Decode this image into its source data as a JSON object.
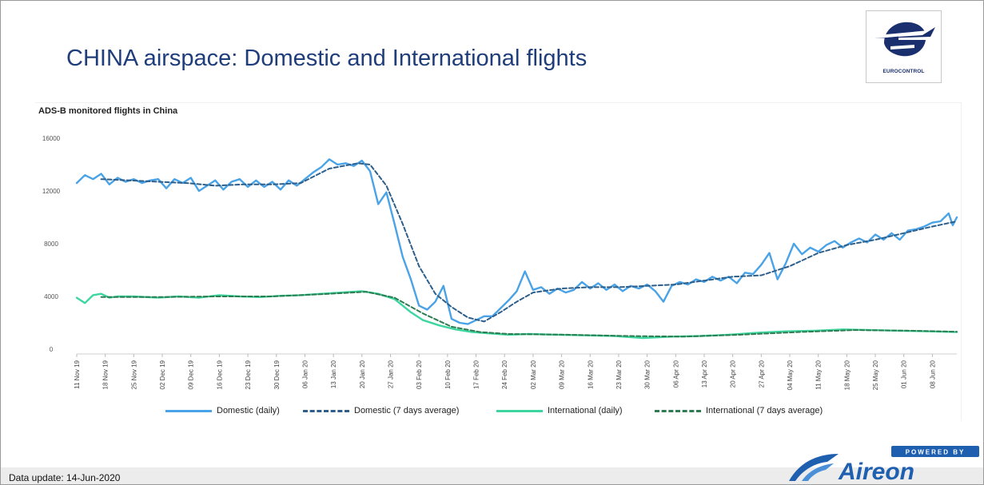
{
  "header": {
    "title": "CHINA airspace: Domestic and International flights",
    "logo_text": "EUROCONTROL"
  },
  "footer": {
    "update_text": "Data update: 14-Jun-2020",
    "brand_powered": "POWERED BY",
    "brand_name": "Aireon"
  },
  "colors": {
    "domestic_daily": "#4aa3e6",
    "domestic_avg": "#2d5f8a",
    "international_daily": "#3ed6a0",
    "international_avg": "#2e7d52",
    "title": "#1f3d7a",
    "brand": "#1f5fb0"
  },
  "chart_data": {
    "type": "line",
    "title": "ADS-B monitored flights in China",
    "xlabel": "",
    "ylabel": "",
    "ylim": [
      0,
      16000
    ],
    "yticks": [
      0,
      4000,
      8000,
      12000,
      16000
    ],
    "x_range": [
      "2019-11-11",
      "2020-06-14"
    ],
    "xtick_labels": [
      "11 Nov 19",
      "18 Nov 19",
      "25 Nov 19",
      "02 Dec 19",
      "09 Dec 19",
      "16 Dec 19",
      "23 Dec 19",
      "30 Dec 19",
      "06 Jan 20",
      "13 Jan 20",
      "20 Jan 20",
      "27 Jan 20",
      "03 Feb 20",
      "10 Feb 20",
      "17 Feb 20",
      "24 Feb 20",
      "02 Mar 20",
      "09 Mar 20",
      "16 Mar 20",
      "23 Mar 20",
      "30 Mar 20",
      "06 Apr 20",
      "13 Apr 20",
      "20 Apr 20",
      "27 Apr 20",
      "04 May 20",
      "11 May 20",
      "18 May 20",
      "25 May 20",
      "01 Jun 20",
      "08 Jun 20"
    ],
    "grid": false,
    "legend_position": "bottom",
    "series": [
      {
        "name": "Domestic (daily)",
        "style": "solid",
        "points": [
          [
            "2019-11-11",
            12600
          ],
          [
            "2019-11-13",
            13200
          ],
          [
            "2019-11-15",
            12900
          ],
          [
            "2019-11-17",
            13300
          ],
          [
            "2019-11-19",
            12500
          ],
          [
            "2019-11-21",
            13000
          ],
          [
            "2019-11-23",
            12700
          ],
          [
            "2019-11-25",
            12900
          ],
          [
            "2019-11-27",
            12600
          ],
          [
            "2019-11-29",
            12800
          ],
          [
            "2019-12-01",
            12900
          ],
          [
            "2019-12-03",
            12200
          ],
          [
            "2019-12-05",
            12900
          ],
          [
            "2019-12-07",
            12600
          ],
          [
            "2019-12-09",
            13000
          ],
          [
            "2019-12-11",
            12000
          ],
          [
            "2019-12-13",
            12400
          ],
          [
            "2019-12-15",
            12800
          ],
          [
            "2019-12-17",
            12100
          ],
          [
            "2019-12-19",
            12700
          ],
          [
            "2019-12-21",
            12900
          ],
          [
            "2019-12-23",
            12300
          ],
          [
            "2019-12-25",
            12800
          ],
          [
            "2019-12-27",
            12300
          ],
          [
            "2019-12-29",
            12700
          ],
          [
            "2019-12-31",
            12100
          ],
          [
            "2020-01-02",
            12800
          ],
          [
            "2020-01-04",
            12400
          ],
          [
            "2020-01-06",
            12900
          ],
          [
            "2020-01-08",
            13400
          ],
          [
            "2020-01-10",
            13800
          ],
          [
            "2020-01-12",
            14400
          ],
          [
            "2020-01-14",
            14000
          ],
          [
            "2020-01-16",
            14100
          ],
          [
            "2020-01-18",
            13900
          ],
          [
            "2020-01-20",
            14300
          ],
          [
            "2020-01-22",
            13500
          ],
          [
            "2020-01-24",
            11000
          ],
          [
            "2020-01-26",
            11900
          ],
          [
            "2020-01-28",
            9500
          ],
          [
            "2020-01-30",
            7000
          ],
          [
            "2020-02-01",
            5300
          ],
          [
            "2020-02-03",
            3300
          ],
          [
            "2020-02-05",
            3000
          ],
          [
            "2020-02-07",
            3600
          ],
          [
            "2020-02-09",
            4800
          ],
          [
            "2020-02-11",
            2300
          ],
          [
            "2020-02-13",
            2000
          ],
          [
            "2020-02-15",
            1900
          ],
          [
            "2020-02-17",
            2200
          ],
          [
            "2020-02-19",
            2500
          ],
          [
            "2020-02-21",
            2500
          ],
          [
            "2020-02-23",
            3100
          ],
          [
            "2020-02-25",
            3700
          ],
          [
            "2020-02-27",
            4400
          ],
          [
            "2020-02-29",
            5900
          ],
          [
            "2020-03-02",
            4500
          ],
          [
            "2020-03-04",
            4700
          ],
          [
            "2020-03-06",
            4200
          ],
          [
            "2020-03-08",
            4600
          ],
          [
            "2020-03-10",
            4300
          ],
          [
            "2020-03-12",
            4500
          ],
          [
            "2020-03-14",
            5100
          ],
          [
            "2020-03-16",
            4600
          ],
          [
            "2020-03-18",
            5000
          ],
          [
            "2020-03-20",
            4500
          ],
          [
            "2020-03-22",
            4900
          ],
          [
            "2020-03-24",
            4400
          ],
          [
            "2020-03-26",
            4800
          ],
          [
            "2020-03-28",
            4600
          ],
          [
            "2020-03-30",
            4900
          ],
          [
            "2020-04-01",
            4400
          ],
          [
            "2020-04-03",
            3600
          ],
          [
            "2020-04-05",
            4800
          ],
          [
            "2020-04-07",
            5100
          ],
          [
            "2020-04-09",
            4900
          ],
          [
            "2020-04-11",
            5300
          ],
          [
            "2020-04-13",
            5100
          ],
          [
            "2020-04-15",
            5500
          ],
          [
            "2020-04-17",
            5200
          ],
          [
            "2020-04-19",
            5500
          ],
          [
            "2020-04-21",
            5000
          ],
          [
            "2020-04-23",
            5800
          ],
          [
            "2020-04-25",
            5700
          ],
          [
            "2020-04-27",
            6400
          ],
          [
            "2020-04-29",
            7300
          ],
          [
            "2020-05-01",
            5300
          ],
          [
            "2020-05-03",
            6500
          ],
          [
            "2020-05-05",
            8000
          ],
          [
            "2020-05-07",
            7200
          ],
          [
            "2020-05-09",
            7700
          ],
          [
            "2020-05-11",
            7400
          ],
          [
            "2020-05-13",
            7900
          ],
          [
            "2020-05-15",
            8200
          ],
          [
            "2020-05-17",
            7700
          ],
          [
            "2020-05-19",
            8100
          ],
          [
            "2020-05-21",
            8400
          ],
          [
            "2020-05-23",
            8100
          ],
          [
            "2020-05-25",
            8700
          ],
          [
            "2020-05-27",
            8300
          ],
          [
            "2020-05-29",
            8800
          ],
          [
            "2020-05-31",
            8300
          ],
          [
            "2020-06-02",
            9000
          ],
          [
            "2020-06-04",
            9100
          ],
          [
            "2020-06-06",
            9300
          ],
          [
            "2020-06-08",
            9600
          ],
          [
            "2020-06-10",
            9700
          ],
          [
            "2020-06-12",
            10300
          ],
          [
            "2020-06-13",
            9400
          ],
          [
            "2020-06-14",
            10000
          ]
        ]
      },
      {
        "name": "Domestic (7 days average)",
        "style": "dashed",
        "points": [
          [
            "2019-11-17",
            12900
          ],
          [
            "2019-11-24",
            12800
          ],
          [
            "2019-12-01",
            12700
          ],
          [
            "2019-12-08",
            12600
          ],
          [
            "2019-12-15",
            12400
          ],
          [
            "2019-12-22",
            12500
          ],
          [
            "2019-12-29",
            12500
          ],
          [
            "2020-01-05",
            12600
          ],
          [
            "2020-01-12",
            13700
          ],
          [
            "2020-01-19",
            14100
          ],
          [
            "2020-01-22",
            14000
          ],
          [
            "2020-01-26",
            12400
          ],
          [
            "2020-01-30",
            9500
          ],
          [
            "2020-02-03",
            6300
          ],
          [
            "2020-02-07",
            4200
          ],
          [
            "2020-02-11",
            3200
          ],
          [
            "2020-02-15",
            2400
          ],
          [
            "2020-02-19",
            2100
          ],
          [
            "2020-02-23",
            2800
          ],
          [
            "2020-02-27",
            3600
          ],
          [
            "2020-03-02",
            4300
          ],
          [
            "2020-03-09",
            4600
          ],
          [
            "2020-03-16",
            4700
          ],
          [
            "2020-03-23",
            4700
          ],
          [
            "2020-03-30",
            4800
          ],
          [
            "2020-04-06",
            4900
          ],
          [
            "2020-04-13",
            5200
          ],
          [
            "2020-04-20",
            5500
          ],
          [
            "2020-04-27",
            5600
          ],
          [
            "2020-05-04",
            6300
          ],
          [
            "2020-05-11",
            7300
          ],
          [
            "2020-05-18",
            7900
          ],
          [
            "2020-05-25",
            8300
          ],
          [
            "2020-06-01",
            8800
          ],
          [
            "2020-06-08",
            9300
          ],
          [
            "2020-06-14",
            9700
          ]
        ]
      },
      {
        "name": "International (daily)",
        "style": "solid",
        "points": [
          [
            "2019-11-11",
            3900
          ],
          [
            "2019-11-13",
            3500
          ],
          [
            "2019-11-15",
            4100
          ],
          [
            "2019-11-17",
            4200
          ],
          [
            "2019-11-19",
            3900
          ],
          [
            "2019-11-21",
            4000
          ],
          [
            "2019-11-25",
            4000
          ],
          [
            "2019-12-01",
            3900
          ],
          [
            "2019-12-06",
            4000
          ],
          [
            "2019-12-11",
            3900
          ],
          [
            "2019-12-16",
            4100
          ],
          [
            "2019-12-21",
            4000
          ],
          [
            "2019-12-26",
            3950
          ],
          [
            "2019-12-31",
            4050
          ],
          [
            "2020-01-05",
            4100
          ],
          [
            "2020-01-10",
            4200
          ],
          [
            "2020-01-15",
            4300
          ],
          [
            "2020-01-20",
            4400
          ],
          [
            "2020-01-24",
            4200
          ],
          [
            "2020-01-28",
            3800
          ],
          [
            "2020-02-01",
            2800
          ],
          [
            "2020-02-04",
            2200
          ],
          [
            "2020-02-08",
            1800
          ],
          [
            "2020-02-12",
            1500
          ],
          [
            "2020-02-16",
            1300
          ],
          [
            "2020-02-20",
            1200
          ],
          [
            "2020-02-25",
            1100
          ],
          [
            "2020-03-01",
            1150
          ],
          [
            "2020-03-08",
            1100
          ],
          [
            "2020-03-15",
            1050
          ],
          [
            "2020-03-22",
            1000
          ],
          [
            "2020-03-29",
            850
          ],
          [
            "2020-04-05",
            950
          ],
          [
            "2020-04-12",
            1000
          ],
          [
            "2020-04-19",
            1100
          ],
          [
            "2020-04-26",
            1250
          ],
          [
            "2020-05-03",
            1350
          ],
          [
            "2020-05-10",
            1400
          ],
          [
            "2020-05-17",
            1500
          ],
          [
            "2020-05-24",
            1450
          ],
          [
            "2020-05-31",
            1400
          ],
          [
            "2020-06-07",
            1350
          ],
          [
            "2020-06-14",
            1300
          ]
        ]
      },
      {
        "name": "International (7 days average)",
        "style": "dashed",
        "points": [
          [
            "2019-11-17",
            3950
          ],
          [
            "2019-12-01",
            3950
          ],
          [
            "2019-12-15",
            4000
          ],
          [
            "2019-12-29",
            4000
          ],
          [
            "2020-01-12",
            4200
          ],
          [
            "2020-01-21",
            4350
          ],
          [
            "2020-01-28",
            3900
          ],
          [
            "2020-02-04",
            2700
          ],
          [
            "2020-02-11",
            1700
          ],
          [
            "2020-02-18",
            1300
          ],
          [
            "2020-02-25",
            1150
          ],
          [
            "2020-03-10",
            1100
          ],
          [
            "2020-03-25",
            1000
          ],
          [
            "2020-04-08",
            950
          ],
          [
            "2020-04-22",
            1100
          ],
          [
            "2020-05-06",
            1300
          ],
          [
            "2020-05-20",
            1450
          ],
          [
            "2020-06-03",
            1400
          ],
          [
            "2020-06-14",
            1320
          ]
        ]
      }
    ]
  }
}
